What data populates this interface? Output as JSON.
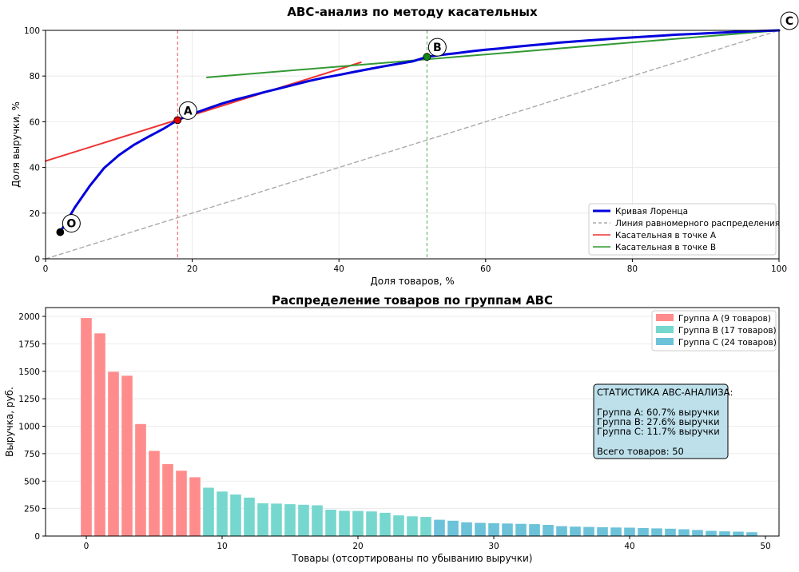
{
  "chart_data": [
    {
      "type": "line",
      "title": "ABC-анализ по методу касательных",
      "xlabel": "Доля товаров, %",
      "ylabel": "Доля выручки, %",
      "xlim": [
        0,
        100
      ],
      "ylim": [
        0,
        100
      ],
      "xticks": [
        0,
        20,
        40,
        60,
        80,
        100
      ],
      "yticks": [
        0,
        20,
        40,
        60,
        80,
        100
      ],
      "grid": true,
      "legend_position": "lower-right",
      "series": [
        {
          "name": "Кривая Лоренца",
          "color": "#0000dd",
          "x": [
            2,
            4,
            6,
            8,
            10,
            12,
            14,
            16,
            18,
            20,
            22,
            24,
            26,
            28,
            30,
            32,
            34,
            36,
            38,
            40,
            42,
            44,
            46,
            48,
            50,
            52,
            54,
            56,
            58,
            60,
            62,
            64,
            66,
            68,
            70,
            72,
            74,
            76,
            78,
            80,
            82,
            84,
            86,
            88,
            90,
            92,
            94,
            96,
            98,
            100
          ],
          "y": [
            11.7,
            22.5,
            31.8,
            39.8,
            45.4,
            49.8,
            53.4,
            56.8,
            60.7,
            63.4,
            65.7,
            67.9,
            69.8,
            71.4,
            73.1,
            74.7,
            76.3,
            77.9,
            79.3,
            80.5,
            81.8,
            83.0,
            84.2,
            85.3,
            86.4,
            88.4,
            89.3,
            90.0,
            90.8,
            91.5,
            92.1,
            92.8,
            93.4,
            94.0,
            94.6,
            95.1,
            95.6,
            96.0,
            96.5,
            96.9,
            97.3,
            97.7,
            98.1,
            98.4,
            98.7,
            99.0,
            99.3,
            99.6,
            99.8,
            100
          ]
        },
        {
          "name": "Линия равномерного распределения",
          "color": "#aaaaaa",
          "dashed": true,
          "x": [
            0,
            100
          ],
          "y": [
            0,
            100
          ]
        },
        {
          "name": "Касательная в точке A",
          "color": "#ee3333",
          "x": [
            0,
            43
          ],
          "y": [
            42.8,
            86
          ]
        },
        {
          "name": "Касательная в точке B",
          "color": "#339933",
          "x": [
            22,
            100
          ],
          "y": [
            79.4,
            100
          ]
        }
      ],
      "vlines": [
        {
          "x": 18,
          "color": "#ee5555"
        },
        {
          "x": 52,
          "color": "#55aa55"
        }
      ],
      "points": [
        {
          "label": "O",
          "x": 2,
          "y": 11.7,
          "color": "#000000"
        },
        {
          "label": "A",
          "x": 18,
          "y": 60.7,
          "color": "#dd0000"
        },
        {
          "label": "B",
          "x": 52,
          "y": 88.4,
          "color": "#118811"
        },
        {
          "label": "C",
          "x": 100,
          "y": 100,
          "color": "#0000dd"
        }
      ]
    },
    {
      "type": "bar",
      "title": "Распределение товаров по группам ABC",
      "xlabel": "Товары (отсортированы по убыванию выручки)",
      "ylabel": "Выручка, руб.",
      "xlim": [
        -3,
        51
      ],
      "ylim": [
        0,
        2080
      ],
      "xticks": [
        0,
        10,
        20,
        30,
        40,
        50
      ],
      "yticks": [
        0,
        250,
        500,
        750,
        1000,
        1250,
        1500,
        1750,
        2000
      ],
      "grid": true,
      "legend_position": "top-right",
      "series": [
        {
          "name": "Группа A (9 товаров)",
          "color": "#ff8c8c",
          "start": 0,
          "values": [
            1985,
            1845,
            1495,
            1460,
            1020,
            775,
            655,
            595,
            535
          ]
        },
        {
          "name": "Группа B (17 товаров)",
          "color": "#76d7cf",
          "start": 9,
          "values": [
            440,
            405,
            378,
            350,
            298,
            295,
            290,
            285,
            280,
            240,
            230,
            228,
            224,
            212,
            188,
            180,
            174
          ]
        },
        {
          "name": "Группа C (24 товаров)",
          "color": "#6bc2d9",
          "start": 26,
          "values": [
            148,
            140,
            125,
            120,
            117,
            114,
            111,
            108,
            102,
            90,
            86,
            83,
            80,
            78,
            76,
            73,
            70,
            67,
            62,
            55,
            47,
            43,
            40,
            35
          ]
        }
      ],
      "stats_box": {
        "title": "СТАТИСТИКА ABC-АНАЛИЗА:",
        "lines": [
          "Группа A: 60.7% выручки",
          "Группа B: 27.6% выручки",
          "Группа C: 11.7% выручки"
        ],
        "total": "Всего товаров: 50"
      }
    }
  ]
}
